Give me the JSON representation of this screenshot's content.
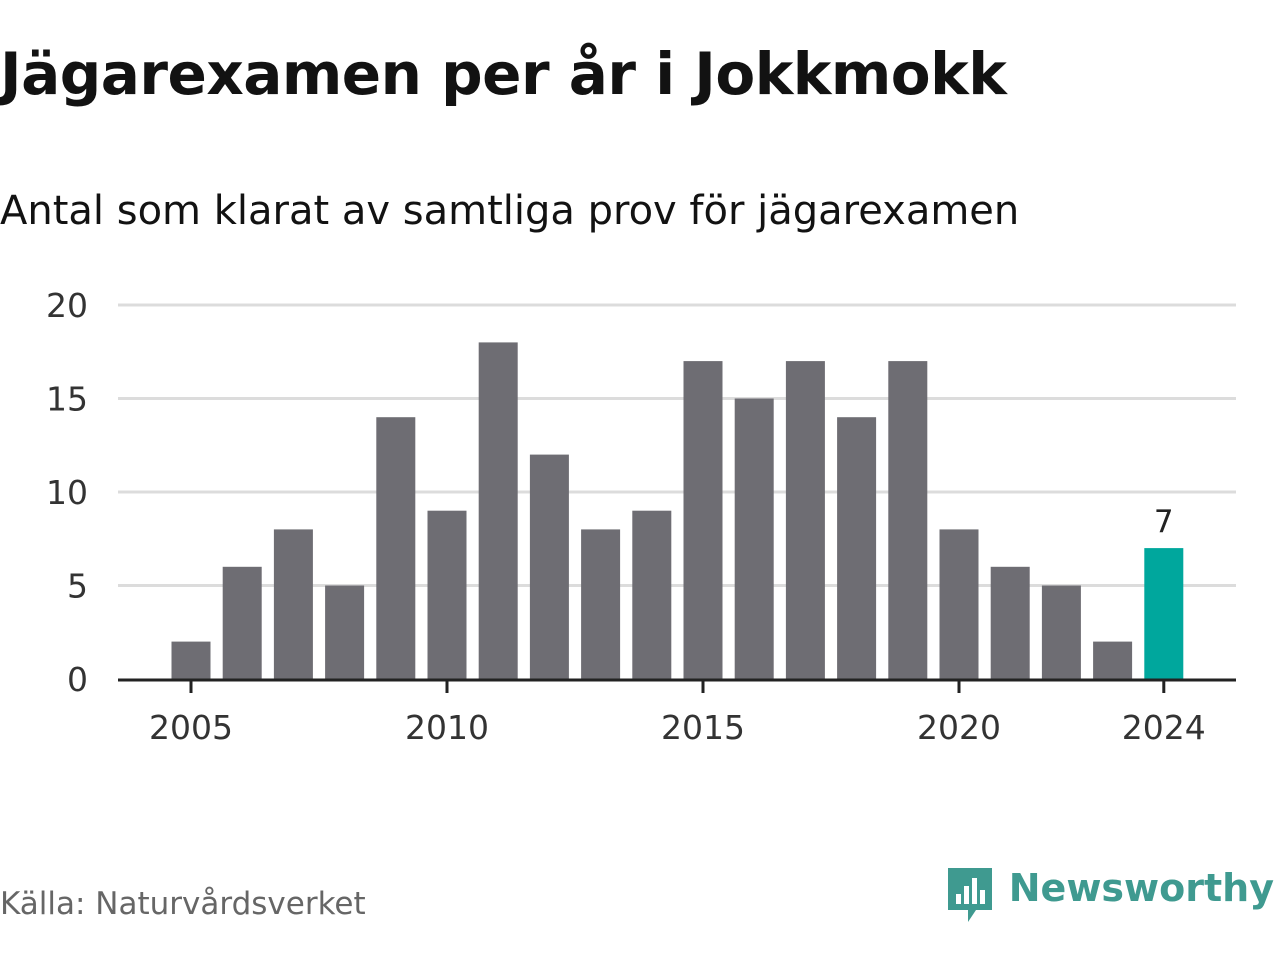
{
  "title": "Jägarexamen per år i Jokkmokk",
  "subtitle": "Antal som klarat av samtliga prov för jägarexamen",
  "source": "Källa: Naturvårdsverket",
  "brand": {
    "name": "Newsworthy",
    "logo_icon": "bar-chart-speech-bubble-icon"
  },
  "colors": {
    "bar": "#6e6d73",
    "highlight": "#00a79d",
    "grid": "#dcdcdc",
    "axis": "#222222",
    "text": "#121212",
    "muted": "#666666",
    "brand": "#3f9a90"
  },
  "chart_data": {
    "type": "bar",
    "x": [
      2005,
      2006,
      2007,
      2008,
      2009,
      2010,
      2011,
      2012,
      2013,
      2014,
      2015,
      2016,
      2017,
      2018,
      2019,
      2020,
      2021,
      2022,
      2023,
      2024
    ],
    "values": [
      2,
      6,
      8,
      5,
      14,
      9,
      18,
      12,
      8,
      9,
      17,
      15,
      17,
      14,
      17,
      8,
      6,
      5,
      2,
      7
    ],
    "x_ticks": [
      "2005",
      "2010",
      "2015",
      "2020",
      "2024"
    ],
    "y_ticks": [
      0,
      5,
      10,
      15,
      20
    ],
    "ylim": [
      0,
      20
    ],
    "highlight": {
      "x": 2024,
      "label": "7"
    },
    "grid": true,
    "xlabel": "",
    "ylabel": ""
  }
}
